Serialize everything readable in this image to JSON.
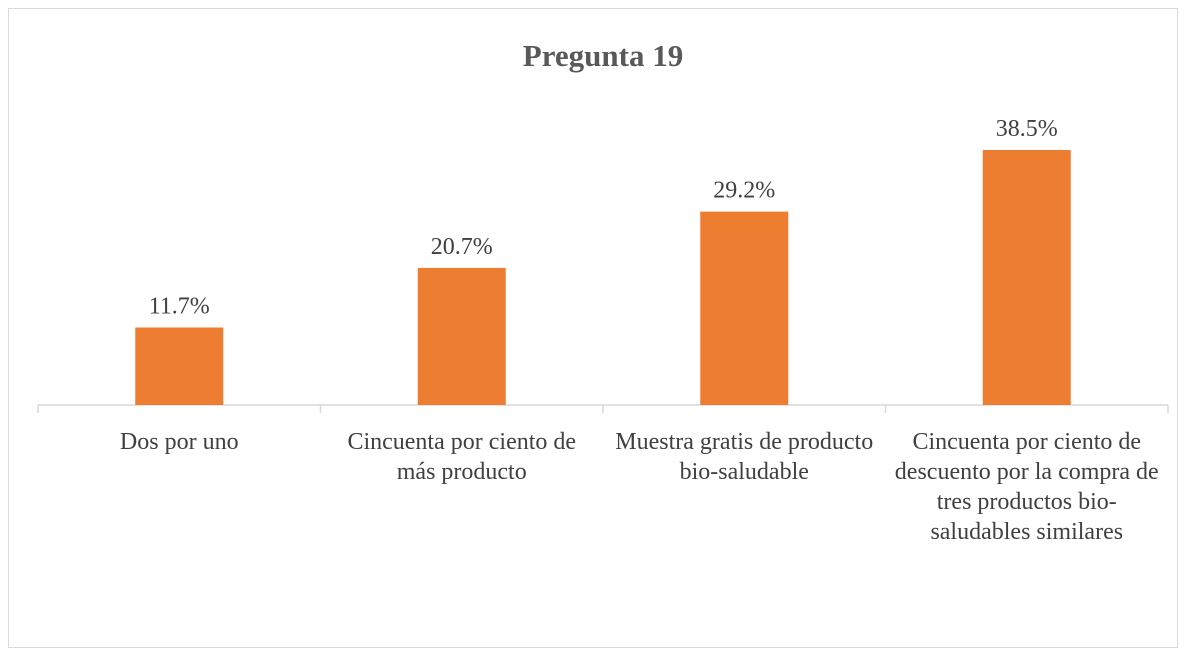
{
  "chart_data": {
    "type": "bar",
    "title": "Pregunta 19",
    "categories": [
      "Dos por uno",
      "Cincuenta por ciento de más producto",
      "Muestra gratis de producto bio-saludable",
      "Cincuenta por ciento de descuento por la compra de tres productos bio-saludables similares"
    ],
    "values": [
      11.7,
      20.7,
      29.2,
      38.5
    ],
    "value_labels": [
      "11.7%",
      "20.7%",
      "29.2%",
      "38.5%"
    ],
    "color": "#ed7d31"
  }
}
